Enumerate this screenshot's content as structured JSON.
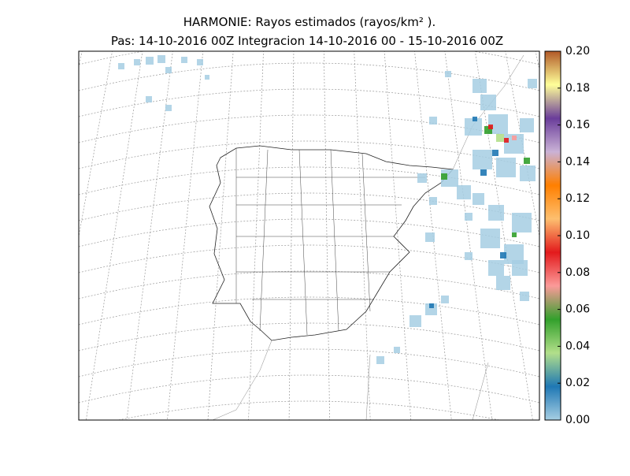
{
  "chart_data": {
    "type": "map",
    "title": "HARMONIE: Rayos estimados  (rayos/km² ).",
    "subtitle": "Pas: 14-10-2016 00Z Integracion 14-10-2016 00 - 15-10-2016 00Z",
    "clim": [
      0,
      0.2
    ],
    "cticks": [
      {
        "value": 0,
        "label": "0.00"
      },
      {
        "value": 0.02,
        "label": "0.02"
      },
      {
        "value": 0.04,
        "label": "0.04"
      },
      {
        "value": 0.06,
        "label": "0.06"
      },
      {
        "value": 0.08,
        "label": "0.08"
      },
      {
        "value": 0.1,
        "label": "0.10"
      },
      {
        "value": 0.12,
        "label": "0.12"
      },
      {
        "value": 0.14,
        "label": "0.14"
      },
      {
        "value": 0.16,
        "label": "0.16"
      },
      {
        "value": 0.18,
        "label": "0.18"
      },
      {
        "value": 0.2,
        "label": "0.20"
      }
    ],
    "colormap": [
      "#a6cee3",
      "#1f78b4",
      "#b2df8a",
      "#33a02c",
      "#fb9a99",
      "#e31a1c",
      "#fdbf6f",
      "#ff7f00",
      "#cab2d6",
      "#6a3d9a",
      "#ffff99",
      "#b15928"
    ]
  }
}
